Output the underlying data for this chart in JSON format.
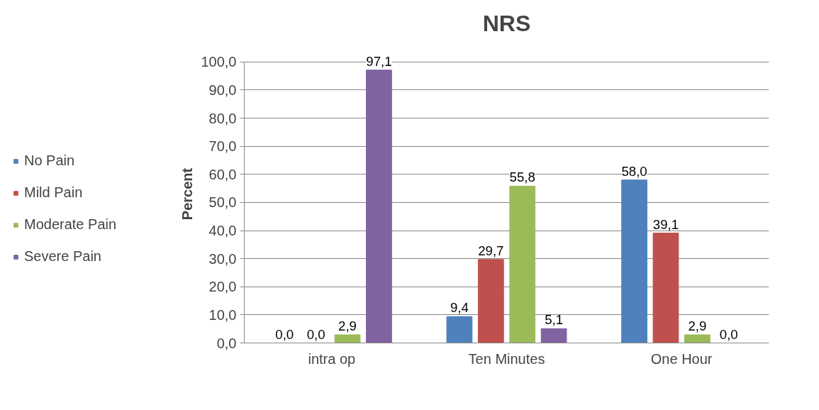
{
  "chart_data": {
    "type": "bar",
    "title": "NRS",
    "ylabel": "Percent",
    "categories": [
      "intra op",
      "Ten Minutes",
      "One Hour"
    ],
    "series": [
      {
        "name": "No Pain",
        "color": "#4f81bd",
        "values": [
          0.0,
          9.4,
          58.0
        ],
        "value_labels": [
          "0,0",
          "9,4",
          "58,0"
        ]
      },
      {
        "name": "Mild Pain",
        "color": "#c0504d",
        "values": [
          0.0,
          29.7,
          39.1
        ],
        "value_labels": [
          "0,0",
          "29,7",
          "39,1"
        ]
      },
      {
        "name": "Moderate Pain",
        "color": "#9bbb59",
        "values": [
          2.9,
          55.8,
          2.9
        ],
        "value_labels": [
          "2,9",
          "55,8",
          "2,9"
        ]
      },
      {
        "name": "Severe Pain",
        "color": "#8064a2",
        "values": [
          97.1,
          5.1,
          0.0
        ],
        "value_labels": [
          "97,1",
          "5,1",
          "0,0"
        ]
      }
    ],
    "ylim": [
      0,
      100
    ],
    "yticks": [
      {
        "value": 0,
        "label": "0,0"
      },
      {
        "value": 10,
        "label": "10,0"
      },
      {
        "value": 20,
        "label": "20,0"
      },
      {
        "value": 30,
        "label": "30,0"
      },
      {
        "value": 40,
        "label": "40,0"
      },
      {
        "value": 50,
        "label": "50,0"
      },
      {
        "value": 60,
        "label": "60,0"
      },
      {
        "value": 70,
        "label": "70,0"
      },
      {
        "value": 80,
        "label": "80,0"
      },
      {
        "value": 90,
        "label": "90,0"
      },
      {
        "value": 100,
        "label": "100,0"
      }
    ],
    "grid": "y",
    "legend": "left"
  }
}
